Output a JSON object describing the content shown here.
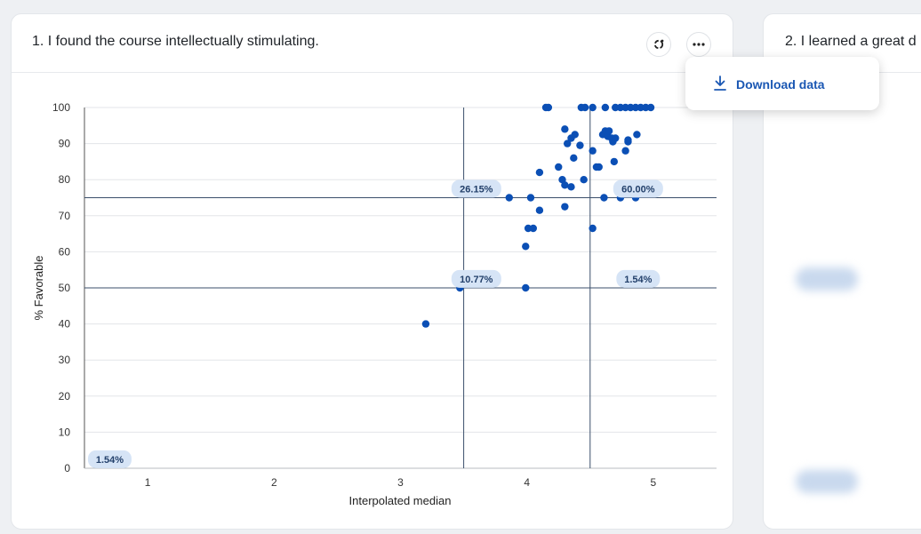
{
  "card1": {
    "title": "1. I found the course intellectually stimulating.",
    "ai_icon": "sparkle-icon",
    "more_icon": "more-horizontal-icon"
  },
  "card2": {
    "title": "2. I learned a great d"
  },
  "menu": {
    "items": [
      {
        "label": "Download data",
        "icon": "download-icon"
      }
    ]
  },
  "colors": {
    "point": "#0b4fb5",
    "quadrant_label_bg": "#d6e4f6",
    "menu_text": "#1a57b3"
  },
  "chart_data": {
    "type": "scatter",
    "title": "",
    "xlabel": "Interpolated median",
    "ylabel": "% Favorable",
    "xlim": [
      0.5,
      5.5
    ],
    "ylim": [
      0,
      100
    ],
    "x_ticks": [
      1,
      2,
      3,
      4,
      5
    ],
    "y_ticks": [
      0,
      10,
      20,
      30,
      40,
      50,
      60,
      70,
      80,
      90,
      100
    ],
    "grid": "horizontal",
    "reference_lines": {
      "x": [
        3.5,
        4.5
      ],
      "y": [
        50,
        75
      ]
    },
    "quadrant_labels": [
      {
        "text": "26.15%",
        "x": 3.6,
        "y": 77.5
      },
      {
        "text": "60.00%",
        "x": 4.88,
        "y": 77.5
      },
      {
        "text": "10.77%",
        "x": 3.6,
        "y": 52.5
      },
      {
        "text": "1.54%",
        "x": 4.88,
        "y": 52.5
      },
      {
        "text": "1.54%",
        "x": 0.7,
        "y": 2.5
      }
    ],
    "series": [
      {
        "points": [
          [
            3.2,
            40
          ],
          [
            3.47,
            50
          ],
          [
            3.99,
            50
          ],
          [
            3.86,
            75
          ],
          [
            4.03,
            75
          ],
          [
            4.1,
            71.5
          ],
          [
            3.99,
            61.5
          ],
          [
            4.01,
            66.5
          ],
          [
            4.05,
            66.5
          ],
          [
            4.1,
            82
          ],
          [
            4.25,
            83.5
          ],
          [
            4.28,
            80
          ],
          [
            4.3,
            78.5
          ],
          [
            4.35,
            78
          ],
          [
            4.45,
            80
          ],
          [
            4.3,
            72.5
          ],
          [
            4.3,
            94
          ],
          [
            4.32,
            90
          ],
          [
            4.35,
            91.5
          ],
          [
            4.37,
            86
          ],
          [
            4.38,
            92.5
          ],
          [
            4.42,
            89.5
          ],
          [
            4.15,
            100
          ],
          [
            4.17,
            100
          ],
          [
            4.43,
            100
          ],
          [
            4.46,
            100
          ],
          [
            4.52,
            100
          ],
          [
            4.62,
            100
          ],
          [
            4.52,
            88
          ],
          [
            4.52,
            66.5
          ],
          [
            4.55,
            83.5
          ],
          [
            4.57,
            83.5
          ],
          [
            4.6,
            92.5
          ],
          [
            4.62,
            93.5
          ],
          [
            4.64,
            92
          ],
          [
            4.65,
            93.5
          ],
          [
            4.67,
            91.5
          ],
          [
            4.68,
            90.5
          ],
          [
            4.7,
            91.5
          ],
          [
            4.69,
            85
          ],
          [
            4.61,
            75
          ],
          [
            4.74,
            75
          ],
          [
            4.86,
            75
          ],
          [
            4.78,
            88
          ],
          [
            4.8,
            90.5
          ],
          [
            4.8,
            91
          ],
          [
            4.87,
            92.5
          ],
          [
            4.7,
            100
          ],
          [
            4.74,
            100
          ],
          [
            4.78,
            100
          ],
          [
            4.82,
            100
          ],
          [
            4.86,
            100
          ],
          [
            4.9,
            100
          ],
          [
            4.94,
            100
          ],
          [
            4.98,
            100
          ]
        ]
      }
    ]
  }
}
